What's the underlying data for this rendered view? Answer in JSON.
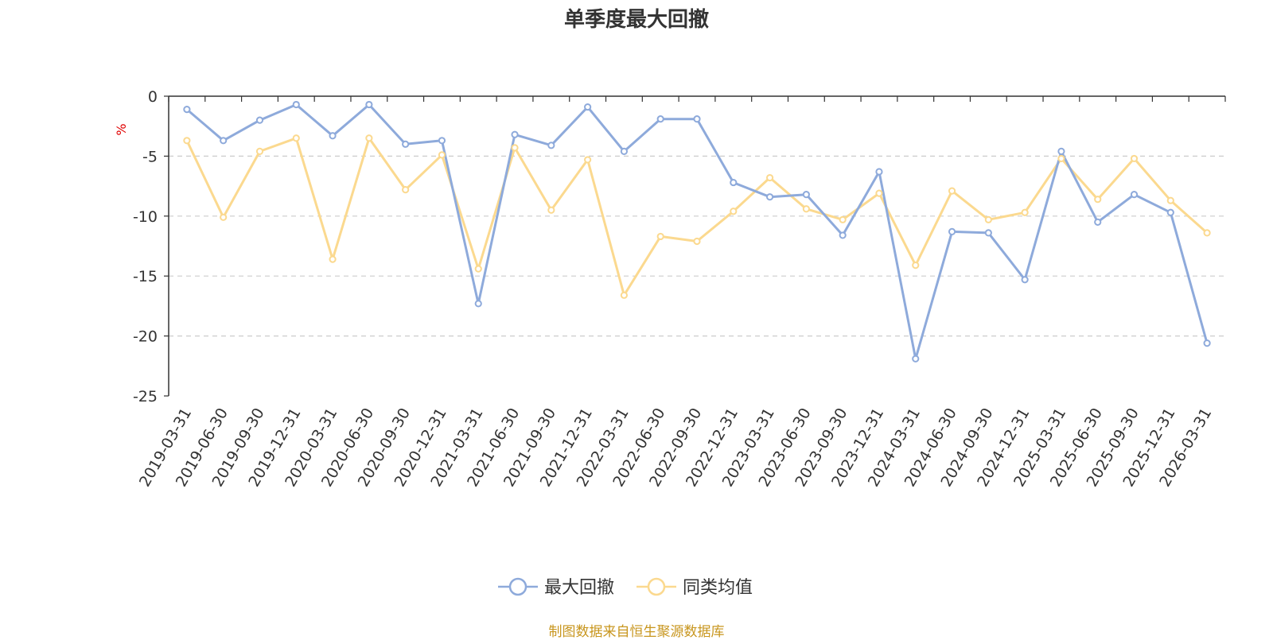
{
  "chart_data": {
    "type": "line",
    "title": "单季度最大回撤",
    "ylabel": "%",
    "ylim": [
      -25,
      0
    ],
    "yticks": [
      0,
      -5,
      -10,
      -15,
      -20,
      -25
    ],
    "grid": true,
    "legend_position": "bottom-center",
    "source_note": "制图数据来自恒生聚源数据库",
    "categories": [
      "2019-03-31",
      "2019-06-30",
      "2019-09-30",
      "2019-12-31",
      "2020-03-31",
      "2020-06-30",
      "2020-09-30",
      "2020-12-31",
      "2021-03-31",
      "2021-06-30",
      "2021-09-30",
      "2021-12-31",
      "2022-03-31",
      "2022-06-30",
      "2022-09-30",
      "2022-12-31",
      "2023-03-31",
      "2023-06-30",
      "2023-09-30",
      "2023-12-31",
      "2024-03-31",
      "2024-06-30",
      "2024-09-30",
      "2024-12-31",
      "2025-03-31",
      "2025-06-30",
      "2025-09-30",
      "2025-12-31",
      "2026-03-31"
    ],
    "series": [
      {
        "name": "最大回撤",
        "color": "#8eaadb",
        "values": [
          -1.1,
          -3.7,
          -2.0,
          -0.7,
          -3.3,
          -0.7,
          -4.0,
          -3.7,
          -17.3,
          -3.2,
          -4.1,
          -0.9,
          -4.6,
          -1.9,
          -1.9,
          -7.2,
          -8.4,
          -8.2,
          -11.6,
          -6.3,
          -21.9,
          -11.3,
          -11.4,
          -15.3,
          -4.6,
          -10.5,
          -8.2,
          -9.7,
          -20.6
        ]
      },
      {
        "name": "同类均值",
        "color": "#fbd98f",
        "values": [
          -3.7,
          -10.1,
          -4.6,
          -3.5,
          -13.6,
          -3.5,
          -7.8,
          -4.9,
          -14.4,
          -4.3,
          -9.5,
          -5.3,
          -16.6,
          -11.7,
          -12.1,
          -9.6,
          -6.8,
          -9.4,
          -10.3,
          -8.1,
          -14.1,
          -7.9,
          -10.3,
          -9.7,
          -5.2,
          -8.6,
          -5.2,
          -8.7,
          -11.4
        ]
      }
    ]
  }
}
